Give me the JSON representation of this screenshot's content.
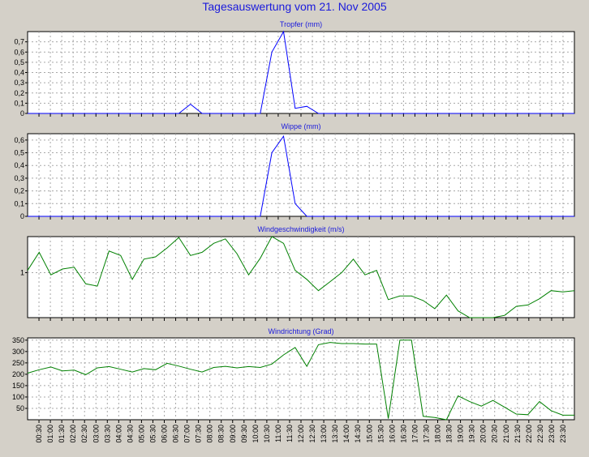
{
  "title": "Tagesauswertung vom 21. Nov 2005",
  "x_tick_labels": [
    "00:30",
    "01:00",
    "01:30",
    "02:00",
    "02:30",
    "03:00",
    "03:30",
    "04:00",
    "04:30",
    "05:00",
    "05:30",
    "06:00",
    "06:30",
    "07:00",
    "07:30",
    "08:00",
    "08:30",
    "09:00",
    "09:30",
    "10:00",
    "10:30",
    "11:00",
    "11:30",
    "12:00",
    "12:30",
    "13:00",
    "13:30",
    "14:00",
    "14:30",
    "15:00",
    "15:30",
    "16:00",
    "16:30",
    "17:00",
    "17:30",
    "18:00",
    "18:30",
    "19:00",
    "19:30",
    "20:00",
    "20:30",
    "21:00",
    "21:30",
    "22:00",
    "22:30",
    "23:00",
    "23:30"
  ],
  "colors": {
    "tropfer": "#0000ff",
    "wippe": "#0000ff",
    "wind": "#008000",
    "windrichtung": "#008000",
    "title": "#1a1adc"
  },
  "chart_data": [
    {
      "type": "line",
      "title": "Tropfer (mm)",
      "ylim": [
        0,
        0.8
      ],
      "y_ticks": [
        0,
        0.1,
        0.2,
        0.3,
        0.4,
        0.5,
        0.6,
        0.7
      ],
      "y_tick_labels": [
        "0",
        "0,1",
        "0,2",
        "0,3",
        "0,4",
        "0,5",
        "0,6",
        "0,7"
      ],
      "grid": true,
      "series": [
        {
          "values": [
            0,
            0,
            0,
            0,
            0,
            0,
            0,
            0,
            0,
            0,
            0,
            0,
            0,
            0,
            0.09,
            0,
            0,
            0,
            0,
            0,
            0,
            0.6,
            0.8,
            0.05,
            0.07,
            0,
            0,
            0,
            0,
            0,
            0,
            0,
            0,
            0,
            0,
            0,
            0,
            0,
            0,
            0,
            0,
            0,
            0,
            0,
            0,
            0,
            0,
            0
          ]
        }
      ]
    },
    {
      "type": "line",
      "title": "Wippe (mm)",
      "ylim": [
        0,
        0.65
      ],
      "y_ticks": [
        0,
        0.1,
        0.2,
        0.3,
        0.4,
        0.5,
        0.6
      ],
      "y_tick_labels": [
        "0",
        "0,1",
        "0,2",
        "0,3",
        "0,4",
        "0,5",
        "0,6"
      ],
      "grid": true,
      "series": [
        {
          "values": [
            0,
            0,
            0,
            0,
            0,
            0,
            0,
            0,
            0,
            0,
            0,
            0,
            0,
            0,
            0,
            0,
            0,
            0,
            0,
            0,
            0,
            0.5,
            0.63,
            0.1,
            0,
            0,
            0,
            0,
            0,
            0,
            0,
            0,
            0,
            0,
            0,
            0,
            0,
            0,
            0,
            0,
            0,
            0,
            0,
            0,
            0,
            0,
            0,
            0
          ]
        }
      ]
    },
    {
      "type": "line",
      "title": "Windgeschwindigkeit (m/s)",
      "ylim": [
        0,
        1.8
      ],
      "y_ticks": [
        1
      ],
      "y_tick_labels": [
        "1"
      ],
      "grid": true,
      "series": [
        {
          "values": [
            1.05,
            1.45,
            0.95,
            1.08,
            1.12,
            0.75,
            0.7,
            1.48,
            1.38,
            0.85,
            1.3,
            1.35,
            1.55,
            1.78,
            1.38,
            1.45,
            1.65,
            1.75,
            1.42,
            0.95,
            1.32,
            1.8,
            1.65,
            1.05,
            0.85,
            0.6,
            0.8,
            1.0,
            1.3,
            0.95,
            1.05,
            0.4,
            0.48,
            0.48,
            0.38,
            0.2,
            0.5,
            0.15,
            0,
            0,
            0,
            0.05,
            0.25,
            0.28,
            0.42,
            0.6,
            0.57,
            0.6
          ]
        }
      ]
    },
    {
      "type": "line",
      "title": "Windrichtung (Grad)",
      "ylim": [
        0,
        360
      ],
      "y_ticks": [
        50,
        100,
        150,
        200,
        250,
        300,
        350
      ],
      "y_tick_labels": [
        "50",
        "100",
        "150",
        "200",
        "250",
        "300",
        "350"
      ],
      "grid": true,
      "series": [
        {
          "values": [
            205,
            220,
            232,
            215,
            218,
            198,
            228,
            234,
            222,
            210,
            225,
            220,
            248,
            236,
            222,
            210,
            230,
            235,
            228,
            234,
            230,
            245,
            285,
            318,
            235,
            330,
            340,
            335,
            335,
            333,
            333,
            5,
            350,
            350,
            15,
            10,
            0,
            105,
            80,
            60,
            85,
            55,
            25,
            22,
            80,
            40,
            20,
            20
          ]
        }
      ]
    }
  ]
}
